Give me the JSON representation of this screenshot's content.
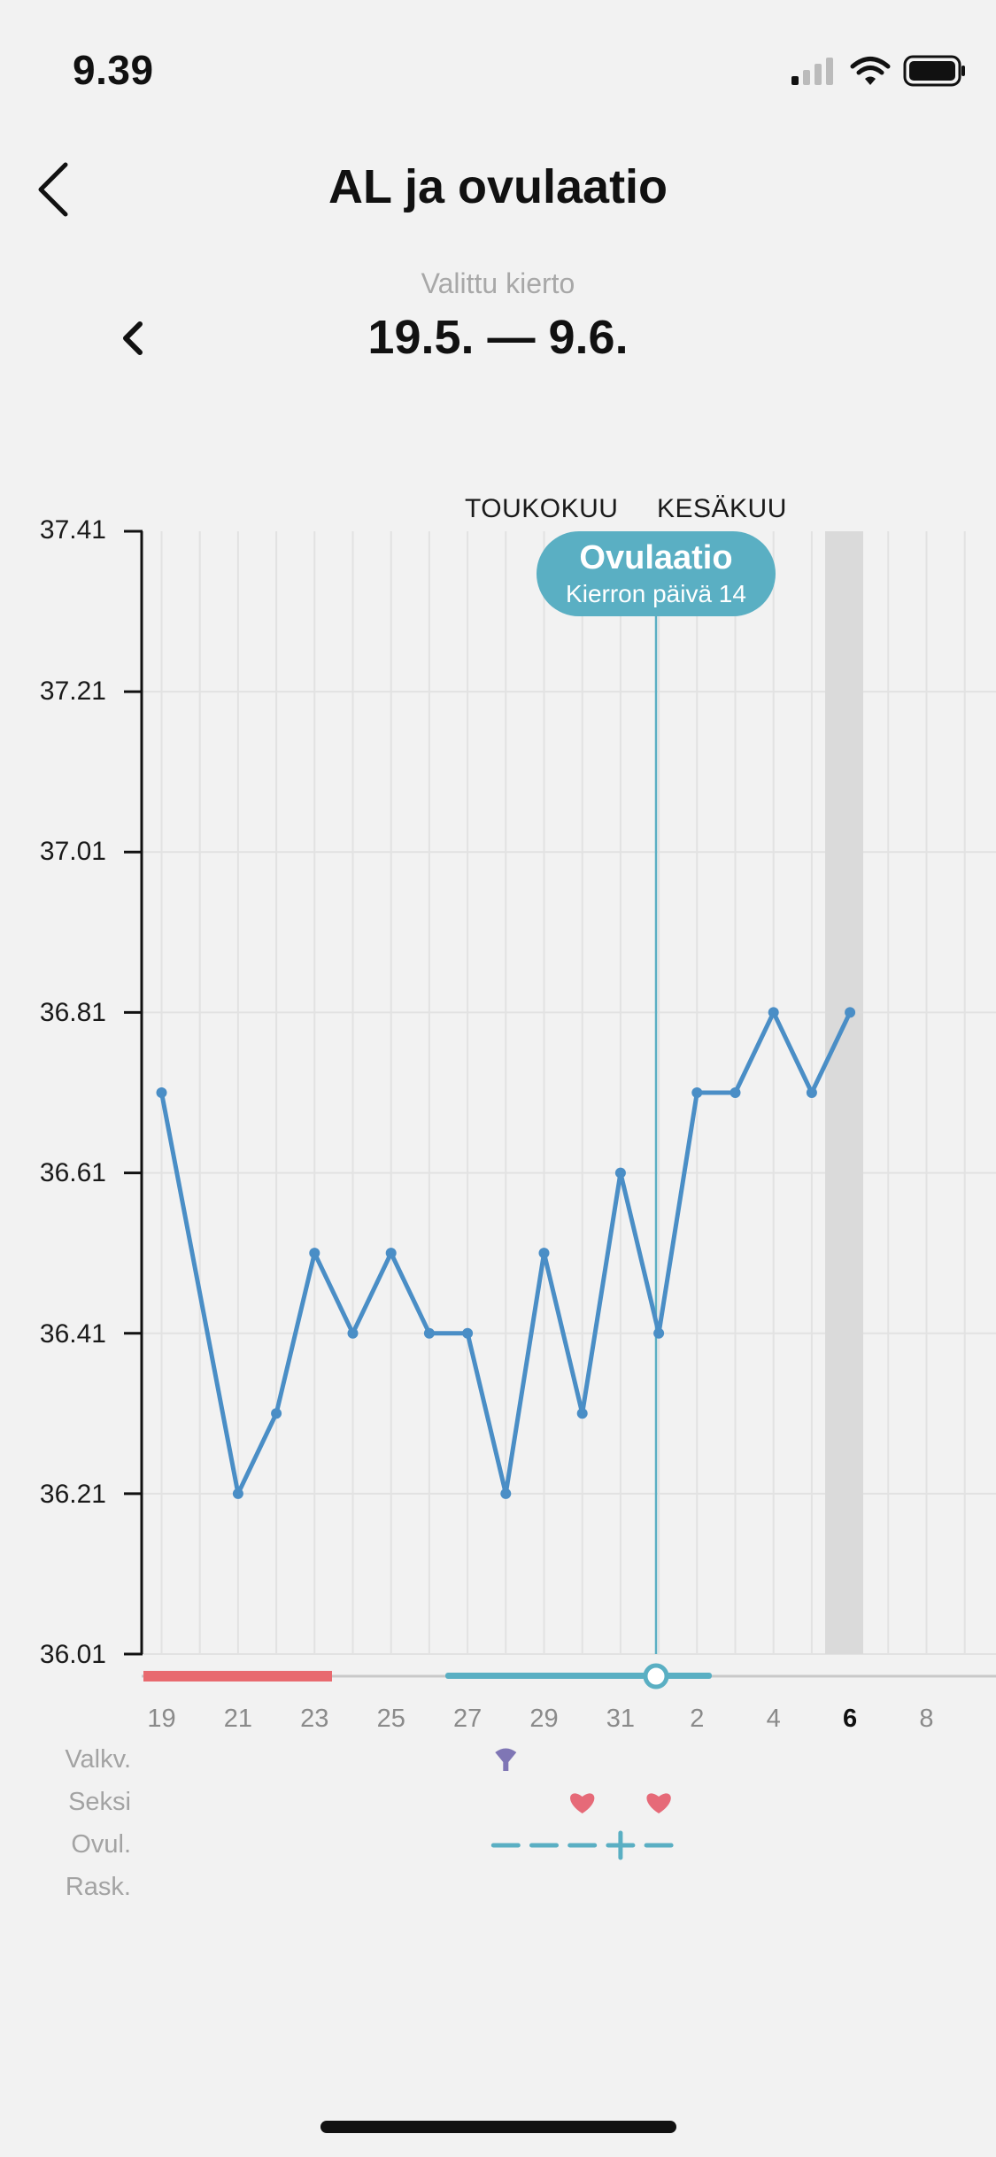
{
  "status_bar": {
    "time": "9.39"
  },
  "nav": {
    "title": "AL ja ovulaatio"
  },
  "cycle": {
    "label": "Valittu kierto",
    "range": "19.5. — 9.6."
  },
  "chart_data": {
    "type": "line",
    "title": "",
    "months": [
      "TOUKOKUU",
      "KESÄKUU"
    ],
    "y_ticks": [
      "37.41",
      "37.21",
      "37.01",
      "36.81",
      "36.61",
      "36.41",
      "36.21",
      "36.01"
    ],
    "ylim": [
      36.01,
      37.41
    ],
    "x_tick_labels": [
      "19",
      "21",
      "23",
      "25",
      "27",
      "29",
      "31",
      "2",
      "4",
      "6",
      "8"
    ],
    "today_label": "6",
    "series": [
      {
        "color": "#4a8ec6",
        "x": [
          "19.5.",
          "21.5.",
          "22.5.",
          "23.5.",
          "24.5.",
          "25.5.",
          "26.5.",
          "27.5.",
          "28.5.",
          "29.5.",
          "30.5.",
          "31.5.",
          "1.6.",
          "2.6.",
          "3.6.",
          "4.6.",
          "5.6.",
          "6.6."
        ],
        "y": [
          36.71,
          36.21,
          36.31,
          36.51,
          36.41,
          36.51,
          36.41,
          36.41,
          36.21,
          36.51,
          36.31,
          36.61,
          36.41,
          36.71,
          36.71,
          36.81,
          36.71,
          36.81
        ]
      }
    ],
    "ovulation": {
      "date": "1.6.",
      "title": "Ovulaatio",
      "subtitle": "Kierron päivä 14",
      "color": "#5aafc3"
    },
    "period": {
      "from": "19.5.",
      "to": "23.5.",
      "color": "#e86a6f"
    },
    "fertile_window": {
      "from": "27.5.",
      "to": "2.6.",
      "color": "#5aafc3"
    },
    "grid": true
  },
  "rows": {
    "labels": [
      "Valkv.",
      "Seksi",
      "Ovul.",
      "Rask."
    ],
    "discharge": [
      "28.5."
    ],
    "sex": [
      "30.5.",
      "1.6."
    ],
    "ovulation_tests": [
      "28.5.",
      "29.5.",
      "30.5.",
      "31.5.",
      "1.6."
    ],
    "positive_test": "31.5."
  },
  "icons": {
    "back": "chevron-left-icon",
    "prev": "chevron-left-icon",
    "discharge": "drop-icon",
    "sex": "heart-icon"
  }
}
